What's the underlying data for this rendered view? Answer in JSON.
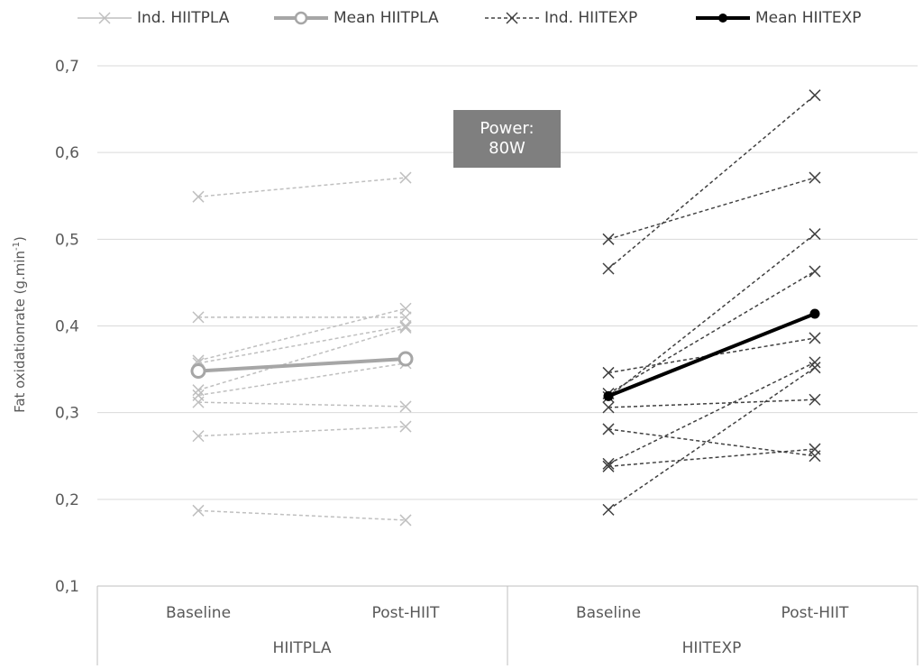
{
  "chart_data": {
    "type": "line",
    "ylabel": "Fat oxidationrate (g.min",
    "ylabel_sup": "-1",
    "ylabel_close": ")",
    "ylim": [
      0.1,
      0.7
    ],
    "yticks": [
      0.1,
      0.2,
      0.3,
      0.4,
      0.5,
      0.6,
      0.7
    ],
    "ytick_labels": [
      "0,1",
      "0,2",
      "0,3",
      "0,4",
      "0,5",
      "0,6",
      "0,7"
    ],
    "grid": true,
    "legend_position": "top",
    "groups": [
      {
        "name": "HIITPLA",
        "categories": [
          "Baseline",
          "Post-HIIT"
        ],
        "series": [
          {
            "name": "Ind. HIITPLA",
            "color": "#bfbfbf",
            "style": "dashed-x",
            "lines": [
              [
                0.549,
                0.571
              ],
              [
                0.41,
                0.41
              ],
              [
                0.36,
                0.42
              ],
              [
                0.357,
                0.4
              ],
              [
                0.326,
                0.398
              ],
              [
                0.32,
                0.357
              ],
              [
                0.312,
                0.307
              ],
              [
                0.273,
                0.284
              ],
              [
                0.187,
                0.176
              ]
            ]
          },
          {
            "name": "Mean HIITPLA",
            "color": "#a6a6a6",
            "style": "solid-circle",
            "lines": [
              [
                0.348,
                0.362
              ]
            ]
          }
        ]
      },
      {
        "name": "HIITEXP",
        "categories": [
          "Baseline",
          "Post-HIIT"
        ],
        "series": [
          {
            "name": "Ind. HIITEXP",
            "color": "#404040",
            "style": "dashed-x",
            "lines": [
              [
                0.5,
                0.571
              ],
              [
                0.466,
                0.666
              ],
              [
                0.346,
                0.386
              ],
              [
                0.322,
                0.463
              ],
              [
                0.318,
                0.506
              ],
              [
                0.306,
                0.315
              ],
              [
                0.281,
                0.25
              ],
              [
                0.241,
                0.358
              ],
              [
                0.238,
                0.258
              ],
              [
                0.188,
                0.352
              ]
            ]
          },
          {
            "name": "Mean HIITEXP",
            "color": "#000000",
            "style": "solid-dot",
            "lines": [
              [
                0.319,
                0.414
              ]
            ]
          }
        ]
      }
    ],
    "annotation": [
      "Power:",
      "80W"
    ]
  },
  "legend": [
    {
      "label": "Ind. HIITPLA",
      "color": "#bfbfbf",
      "marker": "x",
      "dash": false,
      "width": 1.5,
      "lineColor": "#bfbfbf"
    },
    {
      "label": "Mean HIITPLA",
      "color": "#a6a6a6",
      "marker": "circle",
      "dash": false,
      "width": 4,
      "lineColor": "#a6a6a6"
    },
    {
      "label": "Ind. HIITEXP",
      "color": "#404040",
      "marker": "x",
      "dash": true,
      "width": 1.5,
      "lineColor": "#404040"
    },
    {
      "label": "Mean HIITEXP",
      "color": "#000000",
      "marker": "dot",
      "dash": false,
      "width": 4,
      "lineColor": "#000000"
    }
  ]
}
